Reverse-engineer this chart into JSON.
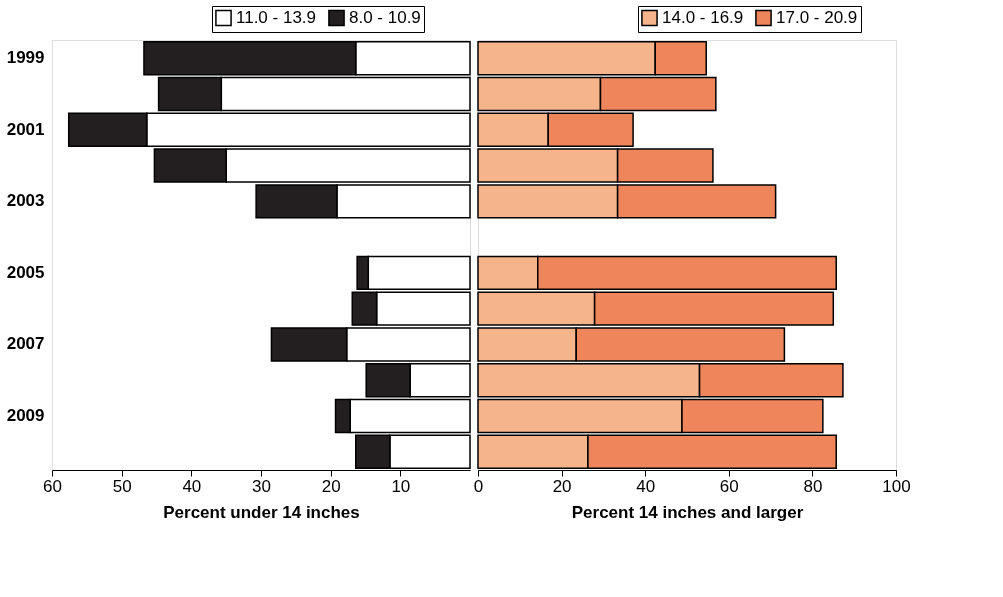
{
  "chart_data": [
    {
      "type": "bar",
      "orientation": "horizontal",
      "stacked": true,
      "xlabel": "Percent under 14 inches",
      "categories": [
        "1999",
        null,
        "2001",
        null,
        "2003",
        null,
        "2005",
        null,
        "2007",
        null,
        "2009",
        null
      ],
      "series": [
        {
          "name": "11.0 - 13.9",
          "color": "#ffffff",
          "values": [
            16.4,
            35.7,
            46.4,
            35.0,
            19.1,
            null,
            14.6,
            13.4,
            17.7,
            8.6,
            17.2,
            11.5
          ]
        },
        {
          "name": "8.0 - 10.9",
          "color": "#231f20",
          "values": [
            30.4,
            9.0,
            11.2,
            10.3,
            11.6,
            null,
            1.6,
            3.5,
            10.8,
            6.3,
            2.1,
            4.9
          ]
        }
      ],
      "xlim": [
        60,
        0
      ],
      "xticks": [
        60,
        50,
        40,
        30,
        20,
        10
      ],
      "grid": false,
      "legend": "top right"
    },
    {
      "type": "bar",
      "orientation": "horizontal",
      "stacked": true,
      "xlabel": "Percent 14 inches and larger",
      "categories": [
        "1999",
        null,
        "2001",
        null,
        "2003",
        null,
        "2005",
        null,
        "2007",
        null,
        "2009",
        null
      ],
      "series": [
        {
          "name": "14.0 - 16.9",
          "color": "#f5b48a",
          "values": [
            42.4,
            29.3,
            16.8,
            33.4,
            33.4,
            null,
            14.3,
            27.9,
            23.5,
            53.0,
            48.8,
            26.3
          ]
        },
        {
          "name": "17.0 - 20.9",
          "color": "#ef855a",
          "values": [
            12.2,
            27.6,
            20.3,
            22.8,
            37.8,
            null,
            71.4,
            57.1,
            49.8,
            34.3,
            33.7,
            59.4
          ]
        }
      ],
      "xlim": [
        0,
        100
      ],
      "xticks": [
        0,
        20,
        40,
        60,
        80,
        100
      ],
      "grid": false,
      "legend": "top right",
      "tick_labels": "x"
    }
  ]
}
